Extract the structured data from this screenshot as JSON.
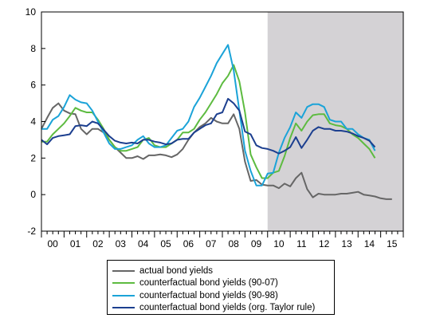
{
  "chart_data": {
    "type": "line",
    "title": "",
    "xlabel": "",
    "ylabel": "",
    "ylim": [
      -2,
      10
    ],
    "xlim": [
      2000.0,
      2016.0
    ],
    "yticks": [
      -2,
      0,
      2,
      4,
      6,
      8,
      10
    ],
    "xtick_labels": [
      "00",
      "01",
      "02",
      "03",
      "04",
      "05",
      "06",
      "07",
      "08",
      "09",
      "10",
      "11",
      "12",
      "13",
      "14",
      "15"
    ],
    "shaded_region": {
      "x_start": 2010.0,
      "x_end": 2016.0,
      "color": "#d4d2d5"
    },
    "grid": false,
    "legend_position": "bottom",
    "series": [
      {
        "name": "actual bond yields",
        "color": "#666666",
        "x": [
          2000.0,
          2000.25,
          2000.5,
          2000.75,
          2001.0,
          2001.25,
          2001.5,
          2001.75,
          2002.0,
          2002.25,
          2002.5,
          2002.75,
          2003.0,
          2003.25,
          2003.5,
          2003.75,
          2004.0,
          2004.25,
          2004.5,
          2004.75,
          2005.0,
          2005.25,
          2005.5,
          2005.75,
          2006.0,
          2006.25,
          2006.5,
          2006.75,
          2007.0,
          2007.25,
          2007.5,
          2007.75,
          2008.0,
          2008.25,
          2008.5,
          2008.75,
          2009.0,
          2009.25,
          2009.5,
          2009.75,
          2010.0,
          2010.25,
          2010.5,
          2010.75,
          2011.0,
          2011.25,
          2011.5,
          2011.75,
          2012.0,
          2012.25,
          2012.5,
          2012.75,
          2013.0,
          2013.25,
          2013.5,
          2013.75,
          2014.0,
          2014.25,
          2014.5,
          2014.75,
          2015.0,
          2015.25,
          2015.5
        ],
        "y": [
          3.6,
          4.2,
          4.75,
          5.0,
          4.6,
          4.45,
          4.4,
          3.6,
          3.3,
          3.6,
          3.6,
          3.4,
          3.0,
          2.6,
          2.3,
          2.0,
          2.0,
          2.1,
          1.95,
          2.15,
          2.15,
          2.2,
          2.15,
          2.05,
          2.2,
          2.5,
          3.0,
          3.4,
          3.7,
          3.9,
          4.2,
          4.0,
          3.9,
          3.9,
          4.4,
          3.6,
          1.8,
          0.75,
          0.8,
          0.55,
          0.5,
          0.5,
          0.35,
          0.6,
          0.45,
          0.9,
          1.2,
          0.3,
          -0.15,
          0.05,
          0.0,
          0.0,
          0.0,
          0.05,
          0.05,
          0.1,
          0.15,
          0.0,
          -0.05,
          -0.1,
          -0.2,
          -0.25,
          -0.25
        ]
      },
      {
        "name": "counterfactual bond yields (90-07)",
        "color": "#5dbb40",
        "x": [
          2000.0,
          2000.25,
          2000.5,
          2000.75,
          2001.0,
          2001.25,
          2001.5,
          2001.75,
          2002.0,
          2002.25,
          2002.5,
          2002.75,
          2003.0,
          2003.25,
          2003.5,
          2003.75,
          2004.0,
          2004.25,
          2004.5,
          2004.75,
          2005.0,
          2005.25,
          2005.5,
          2005.75,
          2006.0,
          2006.25,
          2006.5,
          2006.75,
          2007.0,
          2007.25,
          2007.5,
          2007.75,
          2008.0,
          2008.25,
          2008.5,
          2008.75,
          2009.0,
          2009.25,
          2009.5,
          2009.75,
          2010.0,
          2010.25,
          2010.5,
          2010.75,
          2011.0,
          2011.25,
          2011.5,
          2011.75,
          2012.0,
          2012.25,
          2012.5,
          2012.75,
          2013.0,
          2013.25,
          2013.5,
          2013.75,
          2014.0,
          2014.25,
          2014.5,
          2014.75
        ],
        "y": [
          2.9,
          2.9,
          3.3,
          3.6,
          3.9,
          4.3,
          4.75,
          4.6,
          4.5,
          4.5,
          4.1,
          3.6,
          3.0,
          2.6,
          2.4,
          2.4,
          2.5,
          2.6,
          3.0,
          3.1,
          2.7,
          2.6,
          2.6,
          2.8,
          3.0,
          3.4,
          3.4,
          3.6,
          4.1,
          4.5,
          5.0,
          5.5,
          6.1,
          6.5,
          7.1,
          6.2,
          4.5,
          2.2,
          1.5,
          0.9,
          0.9,
          1.2,
          1.3,
          2.1,
          3.1,
          3.9,
          3.5,
          4.0,
          4.35,
          4.4,
          4.4,
          3.9,
          3.8,
          3.75,
          3.6,
          3.3,
          3.1,
          2.8,
          2.5,
          2.0
        ]
      },
      {
        "name": "counterfactual bond yields (90-98)",
        "color": "#1ba3d8",
        "x": [
          2000.0,
          2000.25,
          2000.5,
          2000.75,
          2001.0,
          2001.25,
          2001.5,
          2001.75,
          2002.0,
          2002.25,
          2002.5,
          2002.75,
          2003.0,
          2003.25,
          2003.5,
          2003.75,
          2004.0,
          2004.25,
          2004.5,
          2004.75,
          2005.0,
          2005.25,
          2005.5,
          2005.75,
          2006.0,
          2006.25,
          2006.5,
          2006.75,
          2007.0,
          2007.25,
          2007.5,
          2007.75,
          2008.0,
          2008.25,
          2008.5,
          2008.75,
          2009.0,
          2009.25,
          2009.5,
          2009.75,
          2010.0,
          2010.25,
          2010.5,
          2010.75,
          2011.0,
          2011.25,
          2011.5,
          2011.75,
          2012.0,
          2012.25,
          2012.5,
          2012.75,
          2013.0,
          2013.25,
          2013.5,
          2013.75,
          2014.0,
          2014.25,
          2014.5,
          2014.75
        ],
        "y": [
          3.6,
          3.6,
          4.1,
          4.3,
          4.8,
          5.45,
          5.2,
          5.05,
          5.0,
          4.6,
          4.0,
          3.4,
          2.8,
          2.5,
          2.5,
          2.6,
          2.7,
          3.0,
          3.2,
          2.8,
          2.6,
          2.6,
          2.7,
          3.1,
          3.5,
          3.6,
          4.0,
          4.8,
          5.3,
          5.9,
          6.5,
          7.2,
          7.7,
          8.2,
          6.8,
          4.6,
          2.4,
          1.3,
          0.5,
          0.5,
          1.15,
          1.2,
          2.3,
          3.1,
          3.7,
          4.5,
          4.2,
          4.8,
          4.95,
          4.95,
          4.8,
          4.1,
          4.0,
          4.0,
          3.6,
          3.6,
          3.3,
          3.1,
          3.0,
          2.4
        ]
      },
      {
        "name": "counterfactual bond yields (org. Taylor rule)",
        "color": "#1c3f8f",
        "x": [
          2000.0,
          2000.25,
          2000.5,
          2000.75,
          2001.0,
          2001.25,
          2001.5,
          2001.75,
          2002.0,
          2002.25,
          2002.5,
          2002.75,
          2003.0,
          2003.25,
          2003.5,
          2003.75,
          2004.0,
          2004.25,
          2004.5,
          2004.75,
          2005.0,
          2005.25,
          2005.5,
          2005.75,
          2006.0,
          2006.25,
          2006.5,
          2006.75,
          2007.0,
          2007.25,
          2007.5,
          2007.75,
          2008.0,
          2008.25,
          2008.5,
          2008.75,
          2009.0,
          2009.25,
          2009.5,
          2009.75,
          2010.0,
          2010.25,
          2010.5,
          2010.75,
          2011.0,
          2011.25,
          2011.5,
          2011.75,
          2012.0,
          2012.25,
          2012.5,
          2012.75,
          2013.0,
          2013.25,
          2013.5,
          2013.75,
          2014.0,
          2014.25,
          2014.5,
          2014.75
        ],
        "y": [
          3.0,
          2.75,
          3.1,
          3.2,
          3.25,
          3.3,
          3.75,
          3.8,
          3.75,
          4.0,
          3.9,
          3.55,
          3.2,
          2.95,
          2.85,
          2.8,
          2.85,
          2.8,
          3.0,
          3.0,
          2.9,
          2.85,
          2.75,
          2.8,
          3.0,
          3.05,
          3.05,
          3.4,
          3.6,
          3.8,
          3.9,
          4.4,
          4.5,
          5.25,
          5.0,
          4.6,
          3.45,
          3.3,
          2.7,
          2.55,
          2.5,
          2.4,
          2.25,
          2.4,
          2.6,
          3.15,
          2.55,
          3.0,
          3.5,
          3.7,
          3.6,
          3.6,
          3.5,
          3.5,
          3.45,
          3.35,
          3.2,
          3.1,
          2.95,
          2.6
        ]
      }
    ]
  }
}
